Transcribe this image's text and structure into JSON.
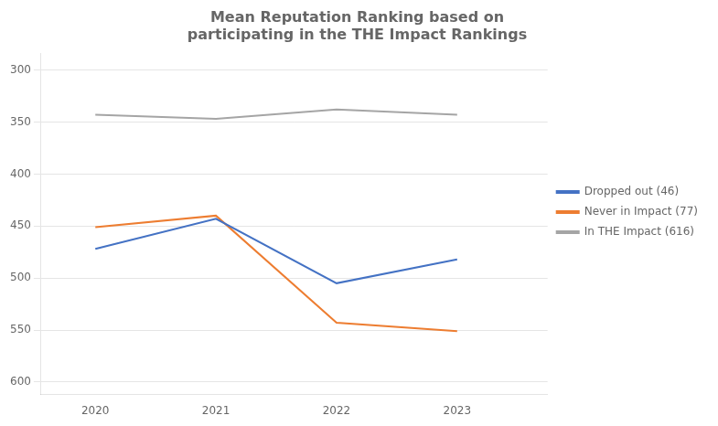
{
  "chart_data": {
    "type": "line",
    "title": "Mean Reputation Ranking based on\nparticipating in the THE Impact Rankings",
    "x": [
      2020,
      2021,
      2022,
      2023
    ],
    "series": [
      {
        "name": "Dropped out (46)",
        "color": "#4472C4",
        "values": [
          472,
          443,
          505,
          482
        ]
      },
      {
        "name": "Never in Impact (77)",
        "color": "#ED7D31",
        "values": [
          451,
          440,
          543,
          551
        ]
      },
      {
        "name": "In THE Impact (616)",
        "color": "#A5A5A5",
        "values": [
          343,
          347,
          338,
          343
        ]
      }
    ],
    "xlim": [
      2019.55,
      2023.75
    ],
    "xticks": [
      2020,
      2021,
      2022,
      2023
    ],
    "ylim": [
      612,
      284
    ],
    "yticks": [
      300,
      350,
      400,
      450,
      500,
      550,
      600
    ],
    "grid": "y",
    "legend": "right"
  }
}
